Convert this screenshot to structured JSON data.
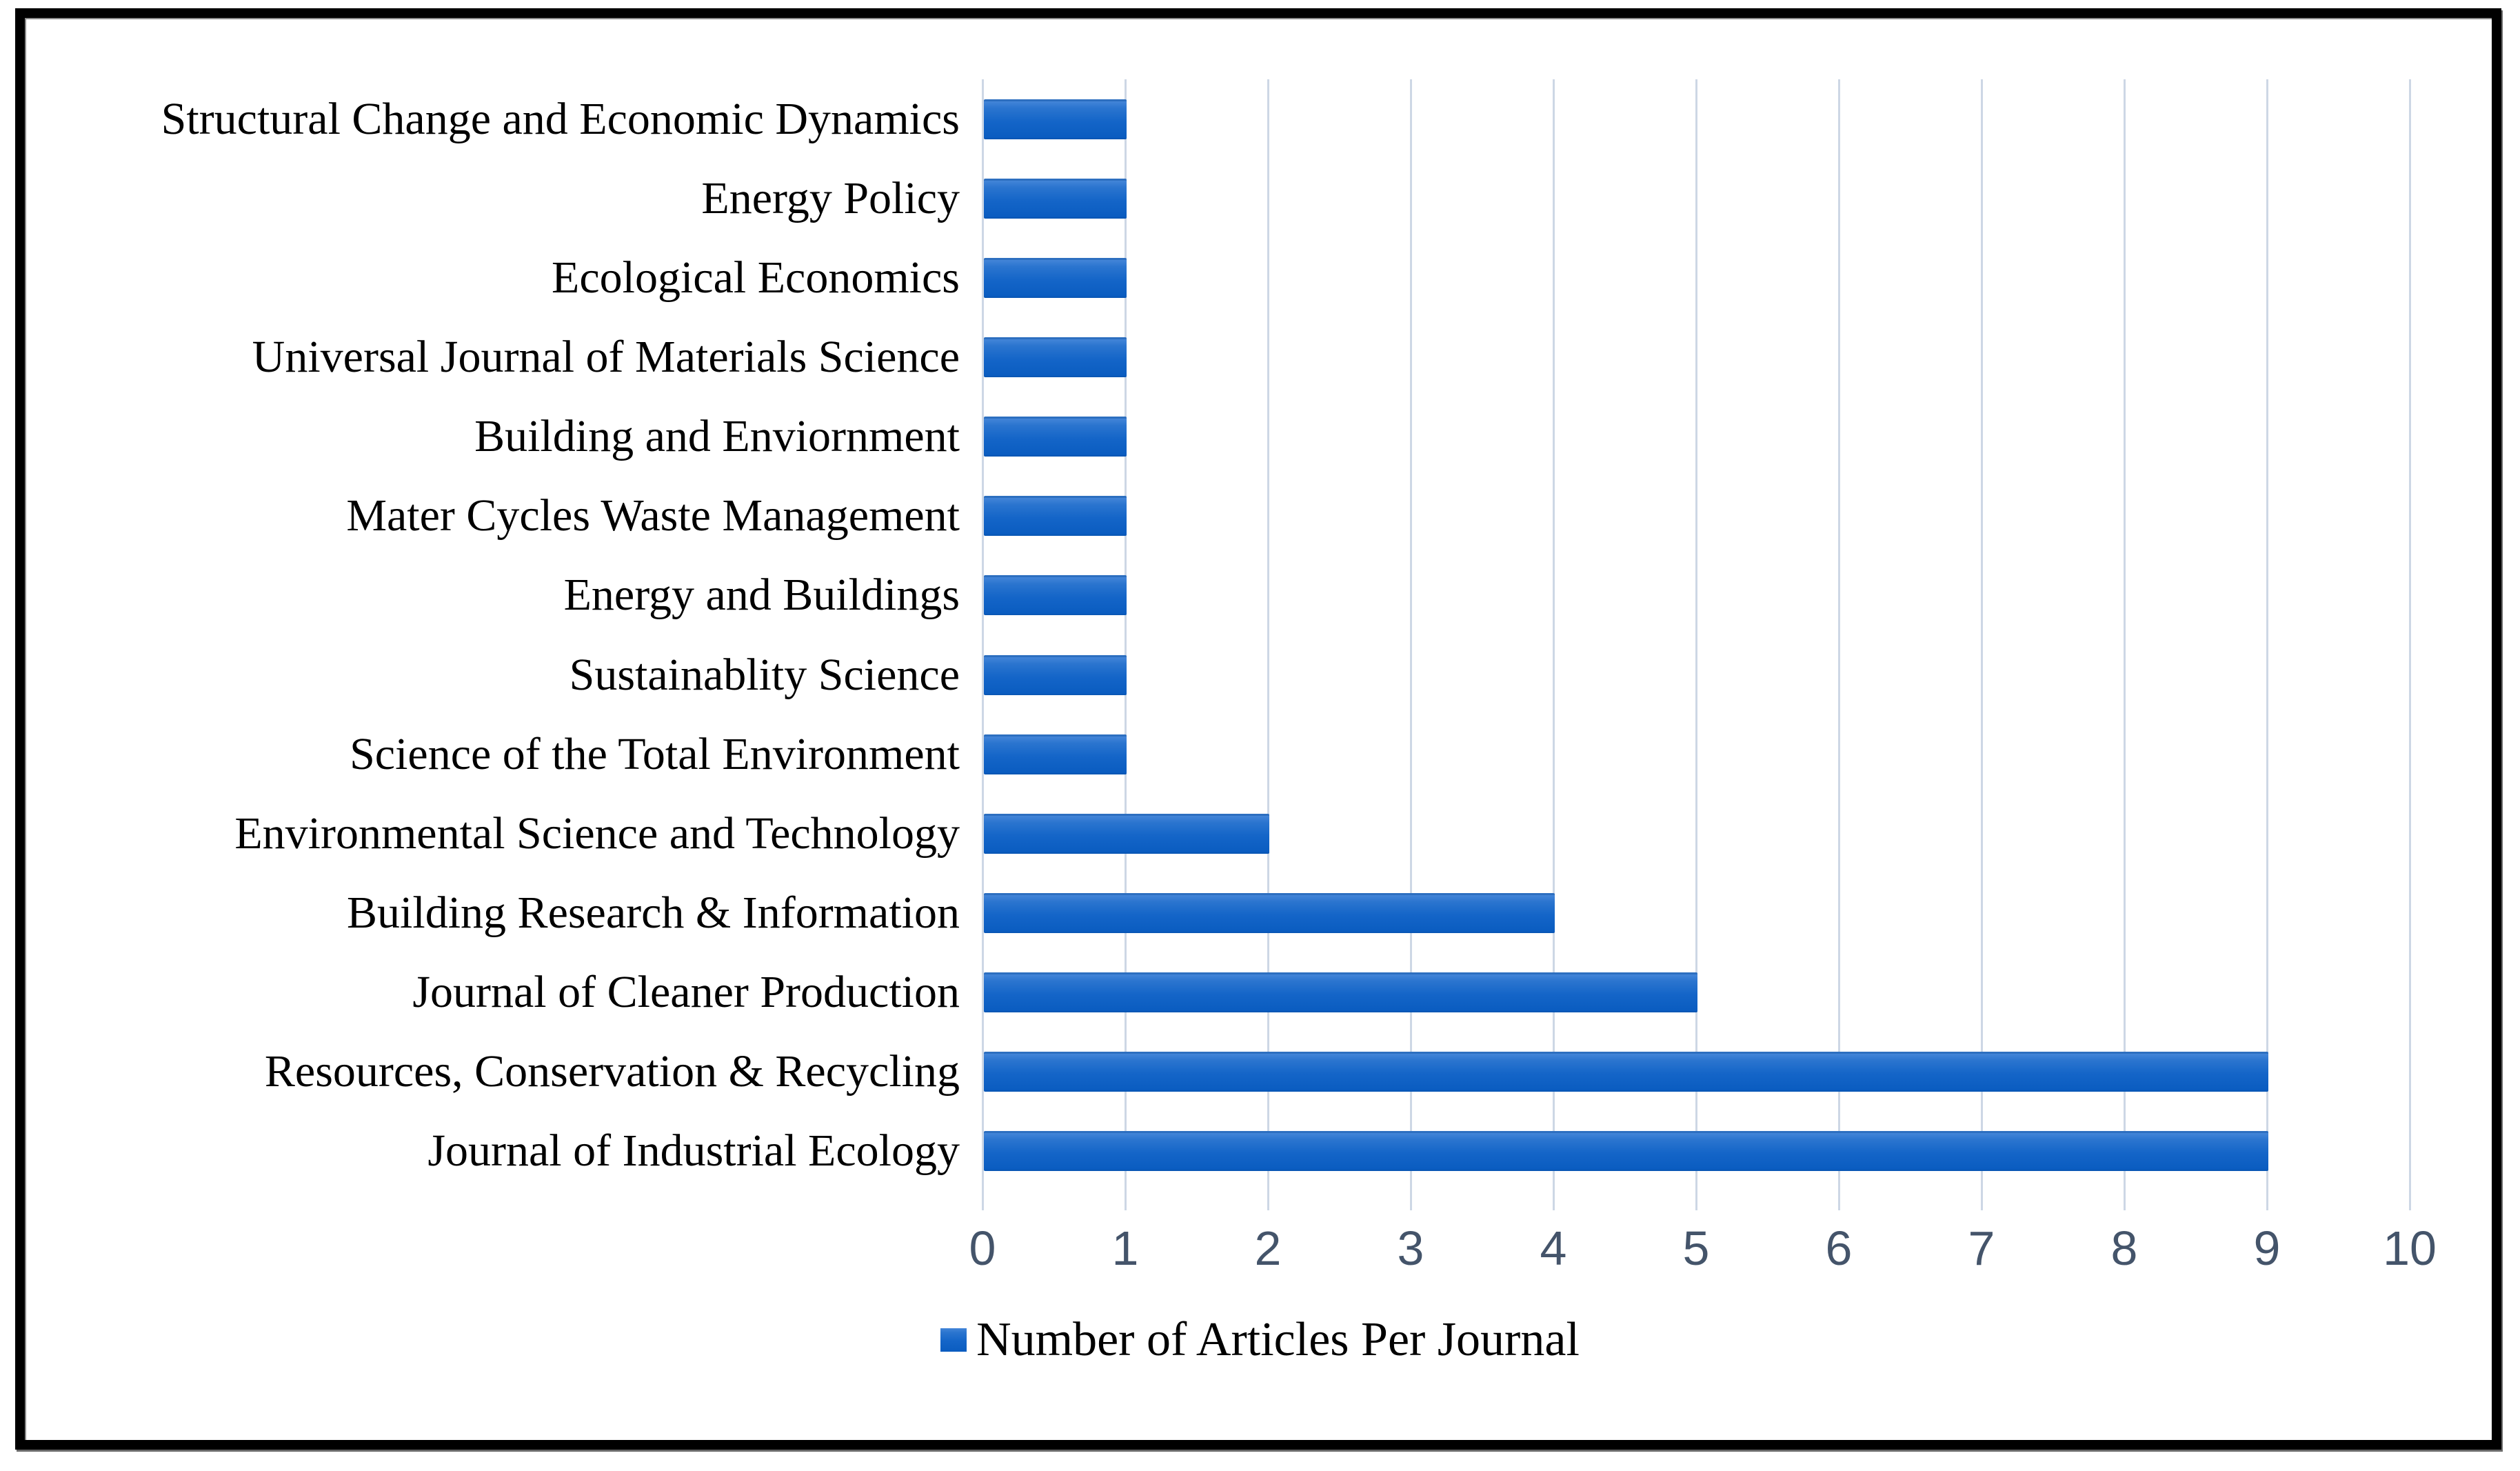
{
  "figure": {
    "background": "#ffffff",
    "border_color": "#000000"
  },
  "chart_data": {
    "type": "bar",
    "orientation": "horizontal",
    "title": "",
    "xlabel": "",
    "ylabel": "",
    "categories": [
      "Structural Change and Economic Dynamics",
      "Energy Policy",
      "Ecological Economics",
      "Universal Journal of Materials Science",
      "Building and Enviornment",
      "Mater Cycles Waste Management",
      "Energy and Buildings",
      "Sustainablity Science",
      "Science of the Total Environment",
      "Environmental Science and Technology",
      "Building Research & Information",
      "Journal of Cleaner Production",
      "Resources, Conservation & Recycling",
      "Journal of Industrial Ecology"
    ],
    "series": [
      {
        "name": "Number of Articles Per Journal",
        "values": [
          1,
          1,
          1,
          1,
          1,
          1,
          1,
          1,
          1,
          2,
          4,
          5,
          9,
          9
        ]
      }
    ],
    "xlim": [
      0,
      10
    ],
    "x_ticks": [
      0,
      1,
      2,
      3,
      4,
      5,
      6,
      7,
      8,
      9,
      10
    ],
    "grid": "vertical-major",
    "legend": {
      "position": "bottom-center",
      "marker": "square"
    },
    "colors": {
      "bar_gradient_top": "#4385d8",
      "bar_gradient_upper": "#2b75cf",
      "bar_gradient_mid": "#1465c8",
      "bar_gradient_bottom": "#0a5cc0",
      "gridline": "#cdd7e5",
      "tick_label": "#44546a",
      "category_label": "#000000",
      "legend_text": "#000000"
    }
  }
}
